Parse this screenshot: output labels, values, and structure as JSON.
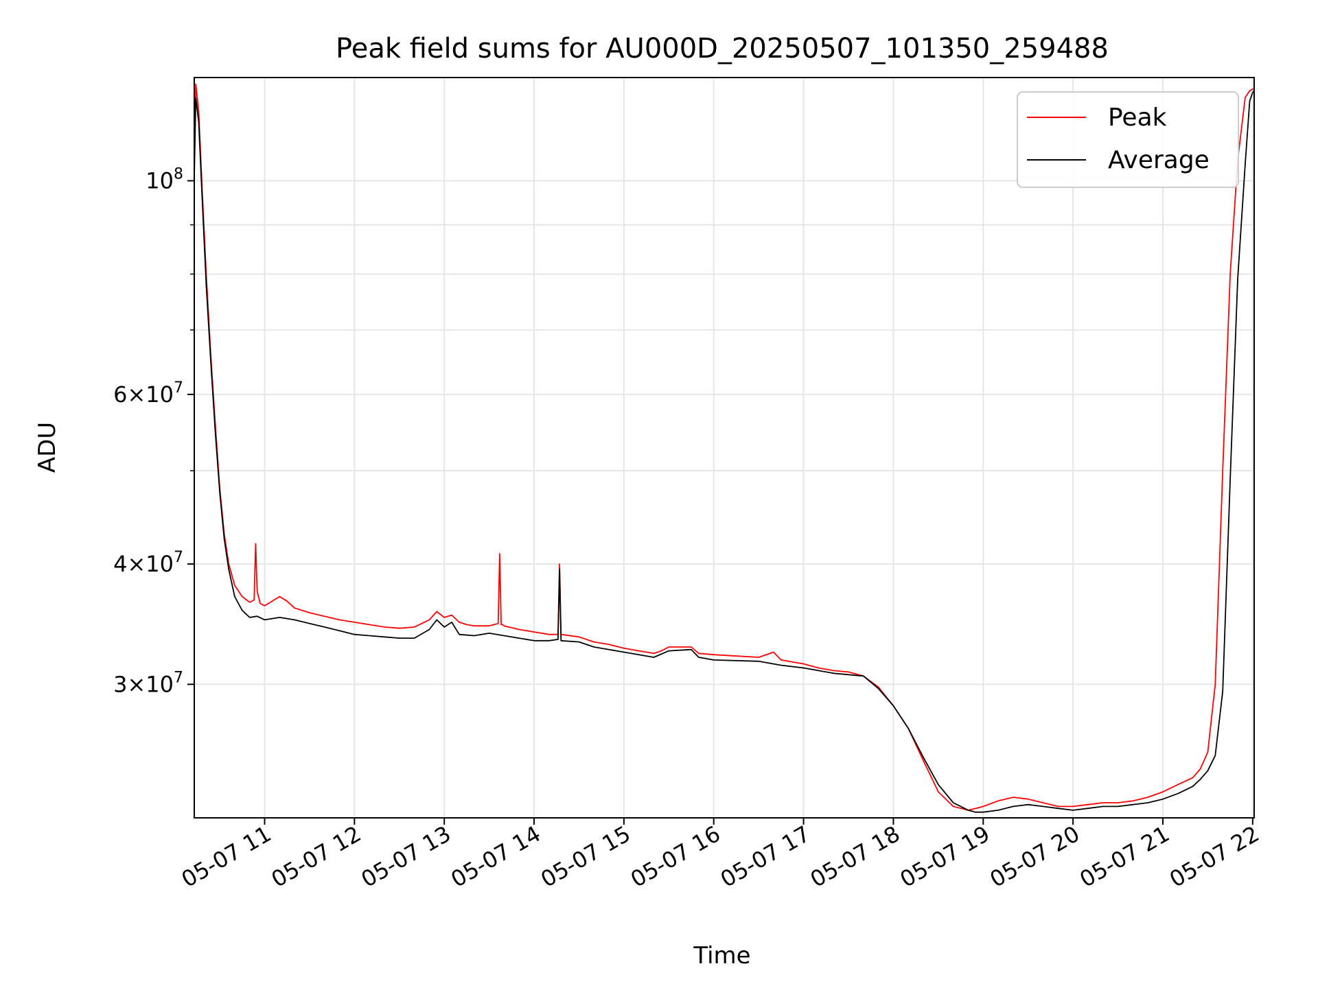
{
  "chart_data": {
    "type": "line",
    "title": "Peak field sums for AU000D_20250507_101350_259488",
    "xlabel": "Time",
    "ylabel": "ADU",
    "yscale": "log",
    "ylim": [
      21800000,
      128000000
    ],
    "xlim": [
      "2025-05-07 10:13",
      "2025-05-07 22:01"
    ],
    "grid": true,
    "legend_position": "upper right",
    "x_ticks": [
      "05-07 11",
      "05-07 12",
      "05-07 13",
      "05-07 14",
      "05-07 15",
      "05-07 16",
      "05-07 17",
      "05-07 18",
      "05-07 19",
      "05-07 20",
      "05-07 21",
      "05-07 22"
    ],
    "y_ticks": [
      {
        "value": 100000000,
        "label": "10^8"
      },
      {
        "value": 60000000,
        "label": "6×10^7"
      },
      {
        "value": 40000000,
        "label": "4×10^7"
      },
      {
        "value": 30000000,
        "label": "3×10^7"
      }
    ],
    "series": [
      {
        "name": "Peak",
        "color": "#ff0000",
        "x": [
          "10:13",
          "10:14",
          "10:16",
          "10:18",
          "10:21",
          "10:24",
          "10:27",
          "10:30",
          "10:33",
          "10:36",
          "10:40",
          "10:45",
          "10:50",
          "10:53",
          "10:54",
          "10:55",
          "10:57",
          "11:00",
          "11:10",
          "11:15",
          "11:20",
          "11:30",
          "11:40",
          "11:50",
          "12:00",
          "12:10",
          "12:20",
          "12:30",
          "12:40",
          "12:50",
          "12:55",
          "13:00",
          "13:05",
          "13:10",
          "13:15",
          "13:20",
          "13:30",
          "13:36",
          "13:37",
          "13:38",
          "13:39",
          "13:40",
          "13:50",
          "14:00",
          "14:10",
          "14:16",
          "14:17",
          "14:18",
          "14:30",
          "14:40",
          "14:50",
          "15:00",
          "15:10",
          "15:20",
          "15:25",
          "15:30",
          "15:45",
          "15:50",
          "16:00",
          "16:30",
          "16:40",
          "16:45",
          "17:00",
          "17:10",
          "17:20",
          "17:30",
          "17:40",
          "17:50",
          "18:00",
          "18:10",
          "18:20",
          "18:30",
          "18:40",
          "18:50",
          "18:55",
          "19:00",
          "19:10",
          "19:20",
          "19:30",
          "19:40",
          "19:50",
          "20:00",
          "20:10",
          "20:20",
          "20:30",
          "20:40",
          "20:50",
          "21:00",
          "21:10",
          "21:20",
          "21:25",
          "21:30",
          "21:35",
          "21:40",
          "21:45",
          "21:50",
          "21:55",
          "21:58",
          "22:00",
          "22:01"
        ],
        "values": [
          102000000,
          126000000,
          118000000,
          100000000,
          80000000,
          66000000,
          56000000,
          48000000,
          43000000,
          40000000,
          38000000,
          37000000,
          36500000,
          36700000,
          42000000,
          37500000,
          36400000,
          36200000,
          37000000,
          36600000,
          36000000,
          35600000,
          35300000,
          35000000,
          34800000,
          34600000,
          34400000,
          34300000,
          34400000,
          35000000,
          35700000,
          35200000,
          35400000,
          34800000,
          34600000,
          34500000,
          34500000,
          34700000,
          41000000,
          34600000,
          34600000,
          34500000,
          34200000,
          34000000,
          33800000,
          33800000,
          40000000,
          33800000,
          33600000,
          33200000,
          33000000,
          32700000,
          32500000,
          32300000,
          32500000,
          32800000,
          32800000,
          32300000,
          32200000,
          32000000,
          32400000,
          31800000,
          31500000,
          31200000,
          31000000,
          30900000,
          30600000,
          29800000,
          28500000,
          27000000,
          25000000,
          23200000,
          22400000,
          22200000,
          22300000,
          22400000,
          22700000,
          22900000,
          22800000,
          22600000,
          22400000,
          22400000,
          22500000,
          22600000,
          22600000,
          22700000,
          22900000,
          23200000,
          23600000,
          24000000,
          24500000,
          25500000,
          30000000,
          50000000,
          80000000,
          105000000,
          122000000,
          124000000,
          124500000,
          124500000
        ]
      },
      {
        "name": "Average",
        "color": "#000000",
        "x": [
          "10:13",
          "10:14",
          "10:16",
          "10:18",
          "10:21",
          "10:24",
          "10:27",
          "10:30",
          "10:33",
          "10:36",
          "10:40",
          "10:45",
          "10:50",
          "10:55",
          "11:00",
          "11:10",
          "11:20",
          "11:30",
          "11:40",
          "11:50",
          "12:00",
          "12:10",
          "12:20",
          "12:30",
          "12:40",
          "12:50",
          "12:55",
          "13:00",
          "13:05",
          "13:10",
          "13:20",
          "13:30",
          "13:40",
          "13:50",
          "14:00",
          "14:10",
          "14:16",
          "14:17",
          "14:18",
          "14:30",
          "14:40",
          "14:50",
          "15:00",
          "15:10",
          "15:20",
          "15:30",
          "15:45",
          "15:50",
          "16:00",
          "16:30",
          "16:45",
          "17:00",
          "17:20",
          "17:40",
          "17:50",
          "18:00",
          "18:10",
          "18:20",
          "18:30",
          "18:40",
          "18:50",
          "18:55",
          "19:00",
          "19:10",
          "19:20",
          "19:30",
          "19:40",
          "19:50",
          "20:00",
          "20:10",
          "20:20",
          "20:30",
          "20:40",
          "20:50",
          "21:00",
          "21:10",
          "21:20",
          "21:25",
          "21:30",
          "21:35",
          "21:40",
          "21:45",
          "21:50",
          "21:55",
          "21:58",
          "22:00",
          "22:01"
        ],
        "values": [
          101000000,
          122000000,
          115000000,
          98000000,
          78000000,
          65000000,
          55000000,
          47500000,
          42500000,
          39500000,
          37000000,
          35800000,
          35200000,
          35300000,
          35000000,
          35200000,
          35000000,
          34700000,
          34400000,
          34100000,
          33800000,
          33700000,
          33600000,
          33500000,
          33500000,
          34200000,
          35000000,
          34400000,
          34800000,
          33800000,
          33700000,
          33900000,
          33700000,
          33500000,
          33300000,
          33300000,
          33400000,
          39500000,
          33300000,
          33200000,
          32800000,
          32600000,
          32400000,
          32200000,
          32000000,
          32500000,
          32600000,
          32000000,
          31800000,
          31700000,
          31400000,
          31200000,
          30800000,
          30600000,
          29700000,
          28500000,
          27000000,
          25200000,
          23600000,
          22600000,
          22200000,
          22100000,
          22100000,
          22200000,
          22400000,
          22500000,
          22400000,
          22300000,
          22200000,
          22300000,
          22400000,
          22400000,
          22500000,
          22600000,
          22800000,
          23100000,
          23500000,
          23900000,
          24400000,
          25300000,
          29500000,
          49000000,
          79000000,
          104000000,
          121000000,
          123500000,
          124000000
        ]
      }
    ]
  }
}
